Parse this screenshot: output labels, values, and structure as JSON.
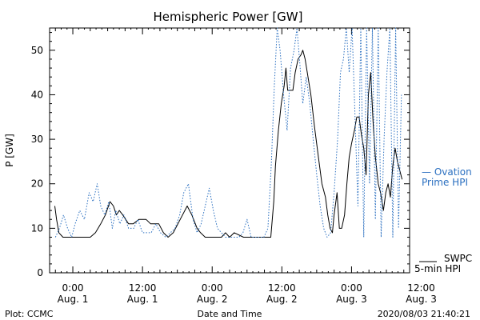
{
  "chart_data": {
    "type": "line",
    "title": "Hemispheric Power [GW]",
    "ylabel": "P [GW]",
    "xlabel": "Date and Time",
    "ylim": [
      0,
      55
    ],
    "yticks": [
      0,
      10,
      20,
      30,
      40,
      50
    ],
    "xlim": [
      -4,
      58
    ],
    "x_unit": "hours since 2020-08-01 00:00",
    "xticks": [
      {
        "x": 0,
        "time": "0:00",
        "date": "Aug. 1"
      },
      {
        "x": 12,
        "time": "12:00",
        "date": "Aug. 1"
      },
      {
        "x": 24,
        "time": "0:00",
        "date": "Aug. 2"
      },
      {
        "x": 36,
        "time": "12:00",
        "date": "Aug. 2"
      },
      {
        "x": 48,
        "time": "0:00",
        "date": "Aug. 3"
      },
      {
        "x": 60,
        "time": "12:00",
        "date": "Aug. 3"
      }
    ],
    "series": [
      {
        "name": "SWPC 5-min HPI",
        "color": "#000000",
        "style": "solid",
        "points": [
          [
            -3.1,
            15
          ],
          [
            -2.8,
            12
          ],
          [
            -2.4,
            9
          ],
          [
            -1.7,
            8
          ],
          [
            -0.4,
            8
          ],
          [
            0.9,
            8
          ],
          [
            1.9,
            8
          ],
          [
            3.0,
            8
          ],
          [
            3.9,
            9
          ],
          [
            4.8,
            11
          ],
          [
            5.6,
            13
          ],
          [
            6.4,
            16
          ],
          [
            7.0,
            15
          ],
          [
            7.5,
            13
          ],
          [
            8.0,
            14
          ],
          [
            8.6,
            13
          ],
          [
            9.6,
            11
          ],
          [
            10.4,
            11
          ],
          [
            11.4,
            12
          ],
          [
            12.6,
            12
          ],
          [
            13.4,
            11
          ],
          [
            14.2,
            11
          ],
          [
            14.8,
            11
          ],
          [
            15.6,
            9
          ],
          [
            16.4,
            8
          ],
          [
            17.3,
            9
          ],
          [
            18.5,
            12
          ],
          [
            19.7,
            15
          ],
          [
            20.5,
            13
          ],
          [
            21.4,
            10
          ],
          [
            22.0,
            9
          ],
          [
            22.8,
            8
          ],
          [
            23.8,
            8
          ],
          [
            24.8,
            8
          ],
          [
            25.6,
            8
          ],
          [
            26.3,
            9
          ],
          [
            27.0,
            8
          ],
          [
            27.8,
            9
          ],
          [
            29.4,
            8
          ],
          [
            31.2,
            8
          ],
          [
            32.3,
            8
          ],
          [
            33.3,
            8
          ],
          [
            34.1,
            8
          ],
          [
            34.6,
            16
          ],
          [
            34.9,
            24
          ],
          [
            35.4,
            32
          ],
          [
            35.9,
            38
          ],
          [
            36.4,
            42
          ],
          [
            36.7,
            46
          ],
          [
            37.0,
            41
          ],
          [
            37.9,
            41
          ],
          [
            38.3,
            45
          ],
          [
            38.8,
            48
          ],
          [
            39.3,
            49
          ],
          [
            39.6,
            50
          ],
          [
            40.0,
            48
          ],
          [
            40.5,
            44
          ],
          [
            41.0,
            40
          ],
          [
            41.6,
            33
          ],
          [
            42.3,
            26
          ],
          [
            42.9,
            20
          ],
          [
            43.5,
            17
          ],
          [
            43.9,
            13
          ],
          [
            44.3,
            10
          ],
          [
            44.7,
            9
          ],
          [
            45.0,
            13
          ],
          [
            45.5,
            18
          ],
          [
            45.9,
            10
          ],
          [
            46.3,
            10
          ],
          [
            46.8,
            13
          ],
          [
            47.2,
            20
          ],
          [
            47.6,
            26
          ],
          [
            48.0,
            29
          ],
          [
            48.5,
            32
          ],
          [
            48.9,
            35
          ],
          [
            49.3,
            35
          ],
          [
            49.7,
            31
          ],
          [
            50.1,
            28
          ],
          [
            50.5,
            22
          ],
          [
            50.9,
            40
          ],
          [
            51.3,
            45
          ],
          [
            51.7,
            34
          ],
          [
            52.1,
            26
          ],
          [
            52.6,
            20
          ],
          [
            53.0,
            18
          ],
          [
            53.5,
            14
          ],
          [
            53.9,
            18
          ],
          [
            54.3,
            20
          ],
          [
            54.7,
            17
          ],
          [
            55.1,
            24
          ],
          [
            55.5,
            28
          ],
          [
            55.9,
            25
          ],
          [
            56.3,
            23
          ],
          [
            56.7,
            21
          ]
        ]
      },
      {
        "name": "Ovation Prime HPI",
        "color": "#2a6fc0",
        "style": "dotted",
        "points": [
          [
            -3.0,
            8
          ],
          [
            -2.3,
            10
          ],
          [
            -1.6,
            13
          ],
          [
            -0.9,
            10
          ],
          [
            -0.2,
            8
          ],
          [
            0.4,
            11
          ],
          [
            1.2,
            14
          ],
          [
            2.0,
            12
          ],
          [
            2.8,
            18
          ],
          [
            3.5,
            16
          ],
          [
            4.2,
            20
          ],
          [
            4.8,
            15
          ],
          [
            5.5,
            13
          ],
          [
            6.2,
            16
          ],
          [
            6.8,
            10
          ],
          [
            7.4,
            14
          ],
          [
            8.1,
            11
          ],
          [
            8.8,
            13
          ],
          [
            9.6,
            10
          ],
          [
            10.5,
            10
          ],
          [
            11.2,
            12
          ],
          [
            12.0,
            9
          ],
          [
            12.8,
            9
          ],
          [
            13.5,
            9
          ],
          [
            14.3,
            11
          ],
          [
            15.1,
            9
          ],
          [
            16.0,
            8
          ],
          [
            16.8,
            9
          ],
          [
            17.6,
            10
          ],
          [
            18.4,
            13
          ],
          [
            19.1,
            18
          ],
          [
            19.9,
            20
          ],
          [
            20.7,
            12
          ],
          [
            21.4,
            9
          ],
          [
            22.1,
            11
          ],
          [
            22.8,
            15
          ],
          [
            23.5,
            19
          ],
          [
            24.2,
            14
          ],
          [
            24.9,
            10
          ],
          [
            25.6,
            9
          ],
          [
            26.3,
            8
          ],
          [
            27.0,
            8
          ],
          [
            27.8,
            8
          ],
          [
            28.6,
            8
          ],
          [
            29.3,
            9
          ],
          [
            30.0,
            12
          ],
          [
            30.7,
            8
          ],
          [
            31.4,
            8
          ],
          [
            32.2,
            8
          ],
          [
            32.9,
            8
          ],
          [
            33.6,
            10
          ],
          [
            34.2,
            25
          ],
          [
            34.7,
            42
          ],
          [
            35.2,
            55
          ],
          [
            35.7,
            50
          ],
          [
            36.3,
            40
          ],
          [
            36.9,
            32
          ],
          [
            37.5,
            46
          ],
          [
            38.1,
            50
          ],
          [
            38.6,
            55
          ],
          [
            39.1,
            47
          ],
          [
            39.6,
            38
          ],
          [
            40.2,
            44
          ],
          [
            40.8,
            38
          ],
          [
            41.4,
            30
          ],
          [
            42.0,
            22
          ],
          [
            42.6,
            15
          ],
          [
            43.2,
            10
          ],
          [
            43.8,
            8
          ],
          [
            44.4,
            9
          ],
          [
            45.0,
            18
          ],
          [
            45.6,
            30
          ],
          [
            46.1,
            45
          ],
          [
            46.6,
            48
          ],
          [
            47.1,
            55
          ],
          [
            47.6,
            45
          ],
          [
            48.1,
            55
          ],
          [
            48.6,
            35
          ],
          [
            49.1,
            15
          ],
          [
            49.6,
            55
          ],
          [
            50.1,
            8
          ],
          [
            50.6,
            55
          ],
          [
            51.1,
            20
          ],
          [
            51.6,
            55
          ],
          [
            52.1,
            12
          ],
          [
            52.6,
            55
          ],
          [
            53.1,
            8
          ],
          [
            53.6,
            30
          ],
          [
            54.1,
            45
          ],
          [
            54.6,
            55
          ],
          [
            55.1,
            8
          ],
          [
            55.6,
            55
          ],
          [
            56.1,
            10
          ],
          [
            56.6,
            40
          ]
        ]
      }
    ],
    "legend": [
      {
        "text_line1": "— Ovation",
        "text_line2": "Prime HPI",
        "color": "#2a6fc0",
        "placement": "right"
      },
      {
        "text_line1": "SWPC",
        "text_line2": "5-min HPI",
        "color": "#000000",
        "placement": "right"
      }
    ],
    "grid": false
  },
  "footer": {
    "left": "Plot: CCMC",
    "center": "Date and Time",
    "right": "2020/08/03 21:40:21"
  }
}
